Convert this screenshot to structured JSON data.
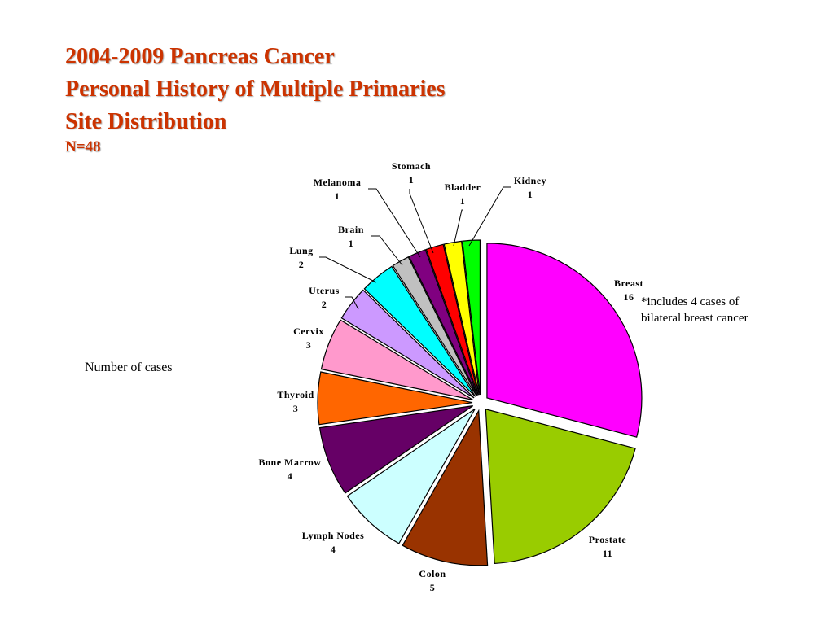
{
  "title_lines": [
    "2004-2009 Pancreas Cancer",
    "Personal History of Multiple Primaries",
    "Site Distribution"
  ],
  "subtitle": "N=48",
  "y_unit_label": "Number of cases",
  "note_lines": [
    "*includes 4 cases of",
    "bilateral  breast cancer"
  ],
  "chart_data": {
    "type": "pie",
    "title": "2004-2009 Pancreas Cancer Personal History of Multiple Primaries Site Distribution",
    "total_label": "N=48",
    "slices": [
      {
        "label": "Breast",
        "value": 16,
        "color": "#ff00ff"
      },
      {
        "label": "Prostate",
        "value": 11,
        "color": "#99cc00"
      },
      {
        "label": "Colon",
        "value": 5,
        "color": "#993300"
      },
      {
        "label": "Lymph Nodes",
        "value": 4,
        "color": "#ccffff"
      },
      {
        "label": "Bone Marrow",
        "value": 4,
        "color": "#660066"
      },
      {
        "label": "Thyroid",
        "value": 3,
        "color": "#ff6600"
      },
      {
        "label": "Cervix",
        "value": 3,
        "color": "#ff99cc"
      },
      {
        "label": "Uterus",
        "value": 2,
        "color": "#cc99ff"
      },
      {
        "label": "Lung",
        "value": 2,
        "color": "#00ffff"
      },
      {
        "label": "Brain",
        "value": 1,
        "color": "#c0c0c0"
      },
      {
        "label": "Melanoma",
        "value": 1,
        "color": "#800080"
      },
      {
        "label": "Stomach",
        "value": 1,
        "color": "#ff0000"
      },
      {
        "label": "Bladder",
        "value": 1,
        "color": "#ffff00"
      },
      {
        "label": "Kidney",
        "value": 1,
        "color": "#00ff00"
      }
    ],
    "legend": "none",
    "start_angle": "12 o'clock",
    "direction": "clockwise",
    "exploded": true
  }
}
